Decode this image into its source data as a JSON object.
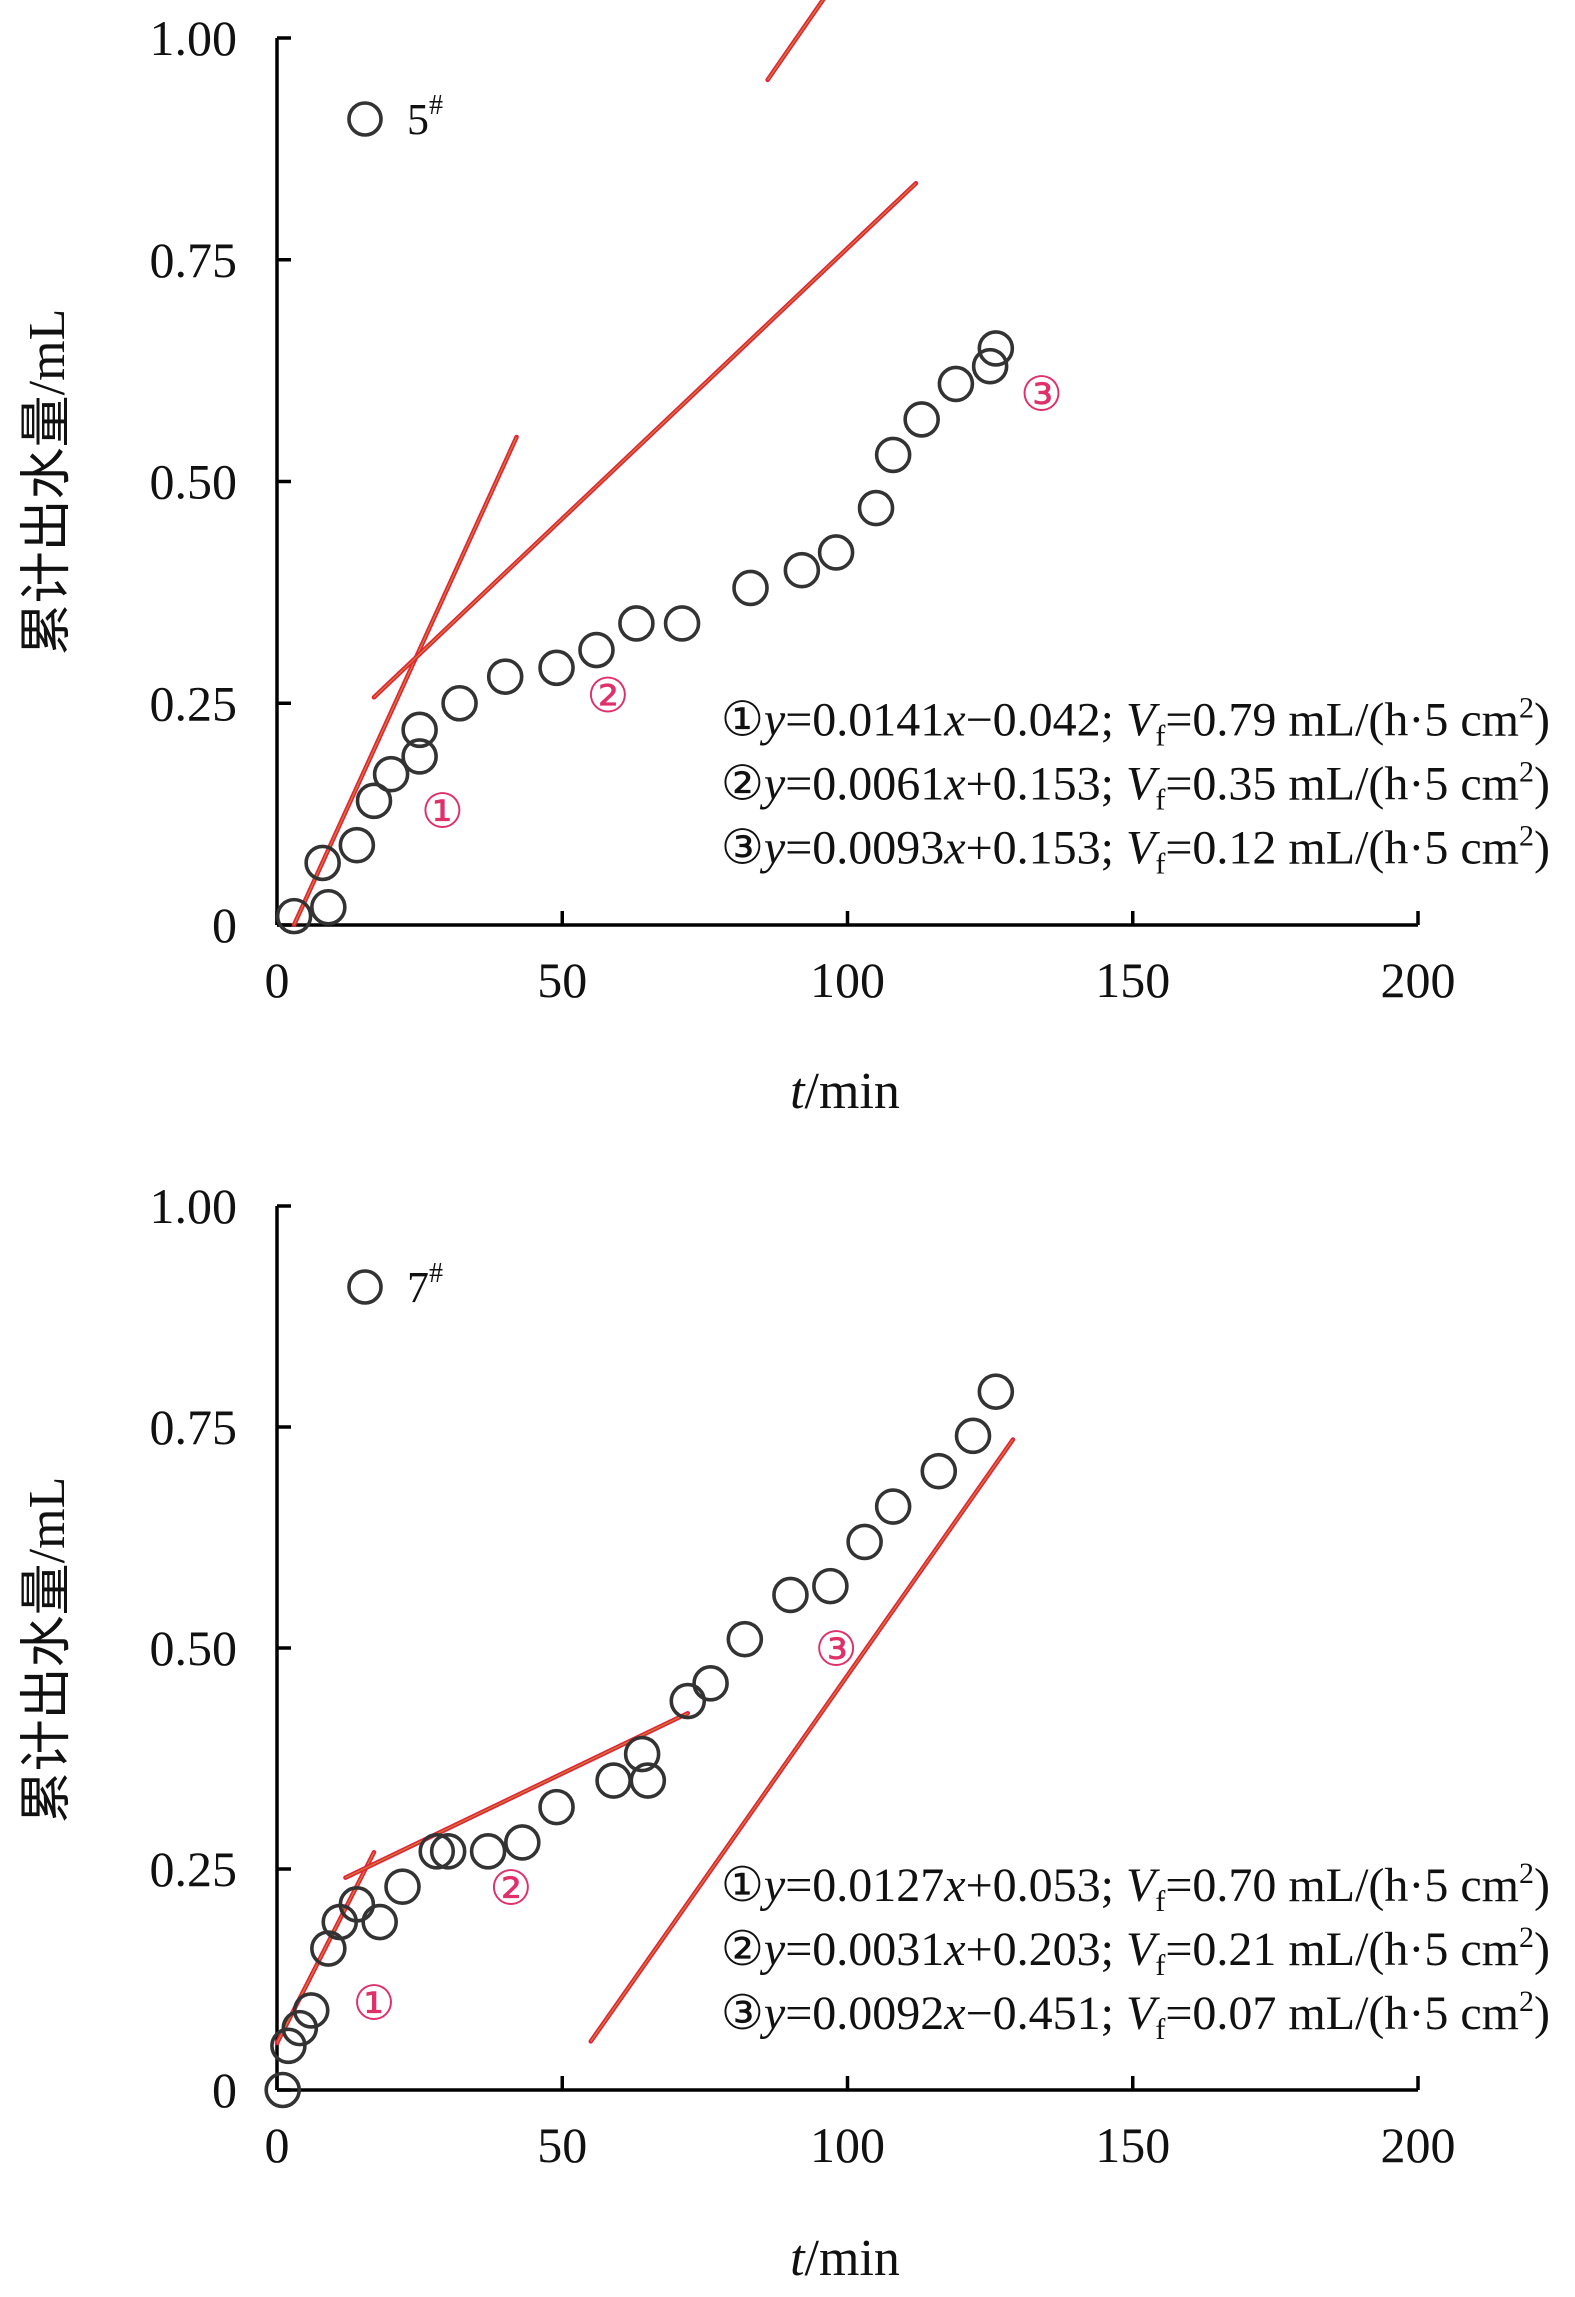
{
  "colors": {
    "marker": "#333333",
    "fit_line": "#e8203a",
    "segment_label": "#e0306a",
    "axis": "#000000"
  },
  "chart_data": [
    {
      "type": "scatter",
      "legend": "5",
      "legend_sup": "#",
      "marker": "open-circle",
      "xlabel_italic": "t",
      "xlabel_rest": "/min",
      "ylabel": "累计出水量/mL",
      "xlim": [
        0,
        200
      ],
      "ylim": [
        0,
        1.0
      ],
      "xticks": [
        0,
        50,
        100,
        150,
        200
      ],
      "xtick_labels": [
        "0",
        "50",
        "100",
        "150",
        "200"
      ],
      "yticks": [
        0,
        0.25,
        0.5,
        0.75,
        1.0
      ],
      "ytick_labels": [
        "0",
        "0.25",
        "0.50",
        "0.75",
        "1.00"
      ],
      "points": [
        [
          3,
          0.01
        ],
        [
          8,
          0.07
        ],
        [
          9,
          0.02
        ],
        [
          14,
          0.09
        ],
        [
          17,
          0.14
        ],
        [
          20,
          0.17
        ],
        [
          25,
          0.22
        ],
        [
          25,
          0.19
        ],
        [
          32,
          0.25
        ],
        [
          40,
          0.28
        ],
        [
          49,
          0.29
        ],
        [
          56,
          0.31
        ],
        [
          63,
          0.34
        ],
        [
          71,
          0.34
        ],
        [
          83,
          0.38
        ],
        [
          92,
          0.4
        ],
        [
          98,
          0.42
        ],
        [
          105,
          0.47
        ],
        [
          108,
          0.53
        ],
        [
          113,
          0.57
        ],
        [
          119,
          0.61
        ],
        [
          125,
          0.63
        ],
        [
          126,
          0.65
        ]
      ],
      "fits": [
        {
          "id": "①",
          "slope": 0.0141,
          "intercept": -0.042,
          "x_range": [
            3,
            42
          ],
          "label_xy": [
            29,
            0.11
          ]
        },
        {
          "id": "②",
          "slope": 0.0061,
          "intercept": 0.153,
          "x_range": [
            17,
            112
          ],
          "label_xy": [
            58,
            0.24
          ]
        },
        {
          "id": "③",
          "slope": 0.0093,
          "intercept": 0.153,
          "x_range": [
            86,
            130
          ],
          "label_xy": [
            134,
            0.58
          ]
        }
      ],
      "equations": [
        {
          "num": "①",
          "y": "y",
          "rhs_a": "=0.0141",
          "x": "x",
          "rhs_b": "−0.042; ",
          "v": "V",
          "sub": "f",
          "rest": "=0.79 mL/(h·5 cm",
          "sup": "2",
          "close": ")"
        },
        {
          "num": "②",
          "y": "y",
          "rhs_a": "=0.0061",
          "x": "x",
          "rhs_b": "+0.153; ",
          "v": "V",
          "sub": "f",
          "rest": "=0.35 mL/(h·5 cm",
          "sup": "2",
          "close": ")"
        },
        {
          "num": "③",
          "y": "y",
          "rhs_a": "=0.0093",
          "x": "x",
          "rhs_b": "+0.153; ",
          "v": "V",
          "sub": "f",
          "rest": "=0.12 mL/(h·5 cm",
          "sup": "2",
          "close": ")"
        }
      ]
    },
    {
      "type": "scatter",
      "legend": "7",
      "legend_sup": "#",
      "marker": "open-circle",
      "xlabel_italic": "t",
      "xlabel_rest": "/min",
      "ylabel": "累计出水量/mL",
      "xlim": [
        0,
        200
      ],
      "ylim": [
        0,
        1.0
      ],
      "xticks": [
        0,
        50,
        100,
        150,
        200
      ],
      "xtick_labels": [
        "0",
        "50",
        "100",
        "150",
        "200"
      ],
      "yticks": [
        0,
        0.25,
        0.5,
        0.75,
        1.0
      ],
      "ytick_labels": [
        "0",
        "0.25",
        "0.50",
        "0.75",
        "1.00"
      ],
      "points": [
        [
          1,
          0.0
        ],
        [
          2,
          0.05
        ],
        [
          4,
          0.07
        ],
        [
          6,
          0.09
        ],
        [
          9,
          0.16
        ],
        [
          11,
          0.19
        ],
        [
          14,
          0.21
        ],
        [
          18,
          0.19
        ],
        [
          22,
          0.23
        ],
        [
          28,
          0.27
        ],
        [
          30,
          0.27
        ],
        [
          37,
          0.27
        ],
        [
          43,
          0.28
        ],
        [
          49,
          0.32
        ],
        [
          59,
          0.35
        ],
        [
          64,
          0.38
        ],
        [
          65,
          0.35
        ],
        [
          72,
          0.44
        ],
        [
          76,
          0.46
        ],
        [
          82,
          0.51
        ],
        [
          90,
          0.56
        ],
        [
          97,
          0.57
        ],
        [
          103,
          0.62
        ],
        [
          108,
          0.66
        ],
        [
          116,
          0.7
        ],
        [
          122,
          0.74
        ],
        [
          126,
          0.79
        ]
      ],
      "fits": [
        {
          "id": "①",
          "slope": 0.0127,
          "intercept": 0.053,
          "x_range": [
            0,
            17
          ],
          "label_xy": [
            17,
            0.08
          ]
        },
        {
          "id": "②",
          "slope": 0.0031,
          "intercept": 0.203,
          "x_range": [
            12,
            72
          ],
          "label_xy": [
            41,
            0.21
          ]
        },
        {
          "id": "③",
          "slope": 0.0092,
          "intercept": -0.451,
          "x_range": [
            55,
            129
          ],
          "label_xy": [
            98,
            0.48
          ]
        }
      ],
      "equations": [
        {
          "num": "①",
          "y": "y",
          "rhs_a": "=0.0127",
          "x": "x",
          "rhs_b": "+0.053; ",
          "v": "V",
          "sub": "f",
          "rest": "=0.70 mL/(h·5 cm",
          "sup": "2",
          "close": ")"
        },
        {
          "num": "②",
          "y": "y",
          "rhs_a": "=0.0031",
          "x": "x",
          "rhs_b": "+0.203; ",
          "v": "V",
          "sub": "f",
          "rest": "=0.21 mL/(h·5 cm",
          "sup": "2",
          "close": ")"
        },
        {
          "num": "③",
          "y": "y",
          "rhs_a": "=0.0092",
          "x": "x",
          "rhs_b": "−0.451; ",
          "v": "V",
          "sub": "f",
          "rest": "=0.07 mL/(h·5 cm",
          "sup": "2",
          "close": ")"
        }
      ]
    }
  ]
}
